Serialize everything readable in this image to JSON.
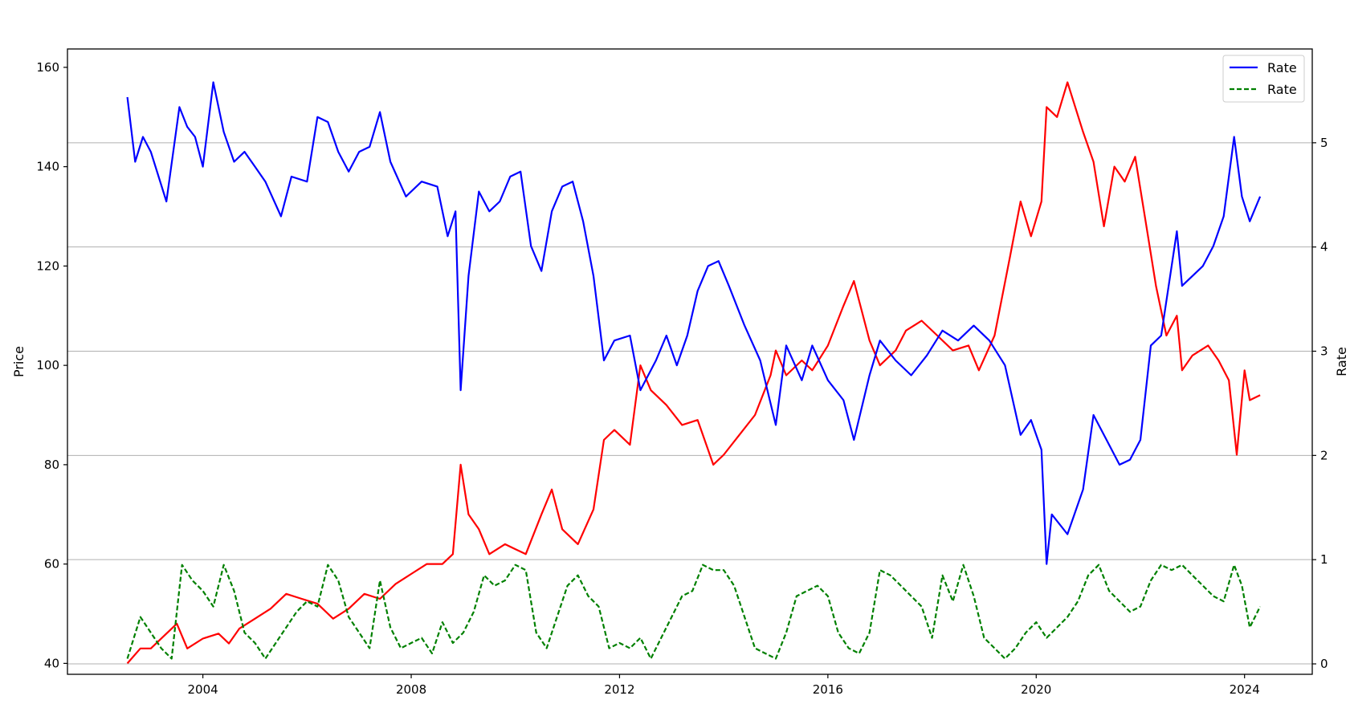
{
  "chart_data": {
    "type": "line",
    "title": "",
    "xlabel": "",
    "ylabel": "Price",
    "y2label": "Rate",
    "xlim": [
      2001.4,
      2025.3
    ],
    "ylim": [
      37.8,
      163.7
    ],
    "y2lim": [
      -0.1,
      5.9
    ],
    "xticks": [
      2004,
      2008,
      2012,
      2016,
      2020,
      2024
    ],
    "yticks": [
      40,
      60,
      80,
      100,
      120,
      140,
      160
    ],
    "y2ticks": [
      0,
      1,
      2,
      3,
      4,
      5
    ],
    "grid": "horizontal lines at right-axis ticks",
    "legend": {
      "placement": "top-right",
      "entries": [
        "Rate",
        "Rate"
      ]
    },
    "series": [
      {
        "name": "Rate",
        "axis": "left",
        "color": "#0000ff",
        "style": "solid",
        "x": [
          2002.55,
          2002.7,
          2002.85,
          2003.0,
          2003.3,
          2003.55,
          2003.7,
          2003.85,
          2004.0,
          2004.2,
          2004.4,
          2004.6,
          2004.8,
          2005.0,
          2005.2,
          2005.5,
          2005.7,
          2006.0,
          2006.2,
          2006.4,
          2006.6,
          2006.8,
          2007.0,
          2007.2,
          2007.4,
          2007.6,
          2007.9,
          2008.2,
          2008.5,
          2008.7,
          2008.85,
          2008.95,
          2009.1,
          2009.3,
          2009.5,
          2009.7,
          2009.9,
          2010.1,
          2010.3,
          2010.5,
          2010.7,
          2010.9,
          2011.1,
          2011.3,
          2011.5,
          2011.7,
          2011.9,
          2012.2,
          2012.4,
          2012.7,
          2012.9,
          2013.1,
          2013.3,
          2013.5,
          2013.7,
          2013.9,
          2014.1,
          2014.4,
          2014.7,
          2015.0,
          2015.2,
          2015.5,
          2015.7,
          2016.0,
          2016.3,
          2016.5,
          2016.8,
          2017.0,
          2017.3,
          2017.6,
          2017.9,
          2018.2,
          2018.5,
          2018.8,
          2019.1,
          2019.4,
          2019.7,
          2019.9,
          2020.1,
          2020.2,
          2020.3,
          2020.6,
          2020.9,
          2021.1,
          2021.3,
          2021.6,
          2021.8,
          2022.0,
          2022.2,
          2022.4,
          2022.6,
          2022.7,
          2022.8,
          2023.0,
          2023.2,
          2023.4,
          2023.6,
          2023.8,
          2023.95,
          2024.1,
          2024.3
        ],
        "y": [
          154,
          141,
          146,
          143,
          133,
          152,
          148,
          146,
          140,
          157,
          147,
          141,
          143,
          140,
          137,
          130,
          138,
          137,
          150,
          149,
          143,
          139,
          143,
          144,
          151,
          141,
          134,
          137,
          136,
          126,
          131,
          95,
          118,
          135,
          131,
          133,
          138,
          139,
          124,
          119,
          131,
          136,
          137,
          129,
          118,
          101,
          105,
          106,
          95,
          101,
          106,
          100,
          106,
          115,
          120,
          121,
          116,
          108,
          101,
          88,
          104,
          97,
          104,
          97,
          93,
          85,
          98,
          105,
          101,
          98,
          102,
          107,
          105,
          108,
          105,
          100,
          86,
          89,
          83,
          60,
          70,
          66,
          75,
          90,
          86,
          80,
          81,
          85,
          104,
          106,
          120,
          127,
          116,
          118,
          120,
          124,
          130,
          146,
          134,
          129,
          134
        ]
      },
      {
        "name": "Rate",
        "axis": "right",
        "color": "#008000",
        "style": "dashed",
        "x": [
          2002.55,
          2002.8,
          2003.0,
          2003.2,
          2003.4,
          2003.6,
          2003.8,
          2004.0,
          2004.2,
          2004.4,
          2004.6,
          2004.8,
          2005.0,
          2005.2,
          2005.4,
          2005.6,
          2005.8,
          2006.0,
          2006.2,
          2006.4,
          2006.6,
          2006.8,
          2007.0,
          2007.2,
          2007.4,
          2007.6,
          2007.8,
          2008.0,
          2008.2,
          2008.4,
          2008.6,
          2008.8,
          2009.0,
          2009.2,
          2009.4,
          2009.6,
          2009.8,
          2010.0,
          2010.2,
          2010.4,
          2010.6,
          2010.8,
          2011.0,
          2011.2,
          2011.4,
          2011.6,
          2011.8,
          2012.0,
          2012.2,
          2012.4,
          2012.6,
          2012.8,
          2013.0,
          2013.2,
          2013.4,
          2013.6,
          2013.8,
          2014.0,
          2014.2,
          2014.4,
          2014.6,
          2014.8,
          2015.0,
          2015.2,
          2015.4,
          2015.6,
          2015.8,
          2016.0,
          2016.2,
          2016.4,
          2016.6,
          2016.8,
          2017.0,
          2017.2,
          2017.4,
          2017.6,
          2017.8,
          2018.0,
          2018.2,
          2018.4,
          2018.6,
          2018.8,
          2019.0,
          2019.2,
          2019.4,
          2019.6,
          2019.8,
          2020.0,
          2020.2,
          2020.4,
          2020.6,
          2020.8,
          2021.0,
          2021.2,
          2021.4,
          2021.6,
          2021.8,
          2022.0,
          2022.2,
          2022.4,
          2022.6,
          2022.8,
          2023.0,
          2023.2,
          2023.4,
          2023.6,
          2023.8,
          2023.95,
          2024.1,
          2024.3
        ],
        "y": [
          0.05,
          0.45,
          0.3,
          0.15,
          0.05,
          0.95,
          0.8,
          0.7,
          0.55,
          0.95,
          0.7,
          0.3,
          0.2,
          0.05,
          0.2,
          0.35,
          0.5,
          0.6,
          0.55,
          0.95,
          0.8,
          0.45,
          0.3,
          0.15,
          0.8,
          0.35,
          0.15,
          0.2,
          0.25,
          0.1,
          0.4,
          0.2,
          0.3,
          0.5,
          0.85,
          0.75,
          0.8,
          0.95,
          0.9,
          0.3,
          0.15,
          0.45,
          0.75,
          0.85,
          0.65,
          0.55,
          0.15,
          0.2,
          0.15,
          0.25,
          0.05,
          0.25,
          0.45,
          0.65,
          0.7,
          0.95,
          0.9,
          0.9,
          0.75,
          0.45,
          0.15,
          0.1,
          0.05,
          0.3,
          0.65,
          0.7,
          0.75,
          0.65,
          0.3,
          0.15,
          0.1,
          0.3,
          0.9,
          0.85,
          0.75,
          0.65,
          0.55,
          0.25,
          0.85,
          0.6,
          0.95,
          0.65,
          0.25,
          0.15,
          0.05,
          0.15,
          0.3,
          0.4,
          0.25,
          0.35,
          0.45,
          0.6,
          0.85,
          0.95,
          0.7,
          0.6,
          0.5,
          0.55,
          0.8,
          0.95,
          0.9,
          0.95,
          0.85,
          0.75,
          0.65,
          0.6,
          0.95,
          0.75,
          0.35,
          0.55
        ]
      },
      {
        "name": "",
        "axis": "left",
        "color": "#ff0000",
        "style": "solid",
        "x": [
          2002.55,
          2002.8,
          2003.0,
          2003.3,
          2003.5,
          2003.7,
          2004.0,
          2004.3,
          2004.5,
          2004.7,
          2005.0,
          2005.3,
          2005.6,
          2005.9,
          2006.2,
          2006.5,
          2006.8,
          2007.1,
          2007.4,
          2007.7,
          2008.0,
          2008.3,
          2008.6,
          2008.8,
          2008.95,
          2009.1,
          2009.3,
          2009.5,
          2009.8,
          2010.0,
          2010.2,
          2010.5,
          2010.7,
          2010.9,
          2011.2,
          2011.5,
          2011.7,
          2011.9,
          2012.2,
          2012.4,
          2012.6,
          2012.9,
          2013.2,
          2013.5,
          2013.8,
          2014.0,
          2014.3,
          2014.6,
          2014.9,
          2015.0,
          2015.2,
          2015.5,
          2015.7,
          2016.0,
          2016.3,
          2016.5,
          2016.8,
          2017.0,
          2017.3,
          2017.5,
          2017.8,
          2018.1,
          2018.4,
          2018.7,
          2018.9,
          2019.2,
          2019.5,
          2019.7,
          2019.9,
          2020.1,
          2020.2,
          2020.4,
          2020.6,
          2020.9,
          2021.1,
          2021.3,
          2021.5,
          2021.7,
          2021.9,
          2022.1,
          2022.3,
          2022.5,
          2022.7,
          2022.8,
          2023.0,
          2023.3,
          2023.5,
          2023.7,
          2023.85,
          2024.0,
          2024.1,
          2024.3
        ],
        "y": [
          40,
          43,
          43,
          46,
          48,
          43,
          45,
          46,
          44,
          47,
          49,
          51,
          54,
          53,
          52,
          49,
          51,
          54,
          53,
          56,
          58,
          60,
          60,
          62,
          80,
          70,
          67,
          62,
          64,
          63,
          62,
          70,
          75,
          67,
          64,
          71,
          85,
          87,
          84,
          100,
          95,
          92,
          88,
          89,
          80,
          82,
          86,
          90,
          98,
          103,
          98,
          101,
          99,
          104,
          112,
          117,
          105,
          100,
          103,
          107,
          109,
          106,
          103,
          104,
          99,
          106,
          122,
          133,
          126,
          133,
          152,
          150,
          157,
          147,
          141,
          128,
          140,
          137,
          142,
          129,
          116,
          106,
          110,
          99,
          102,
          104,
          101,
          97,
          82,
          99,
          93,
          94
        ]
      }
    ]
  }
}
